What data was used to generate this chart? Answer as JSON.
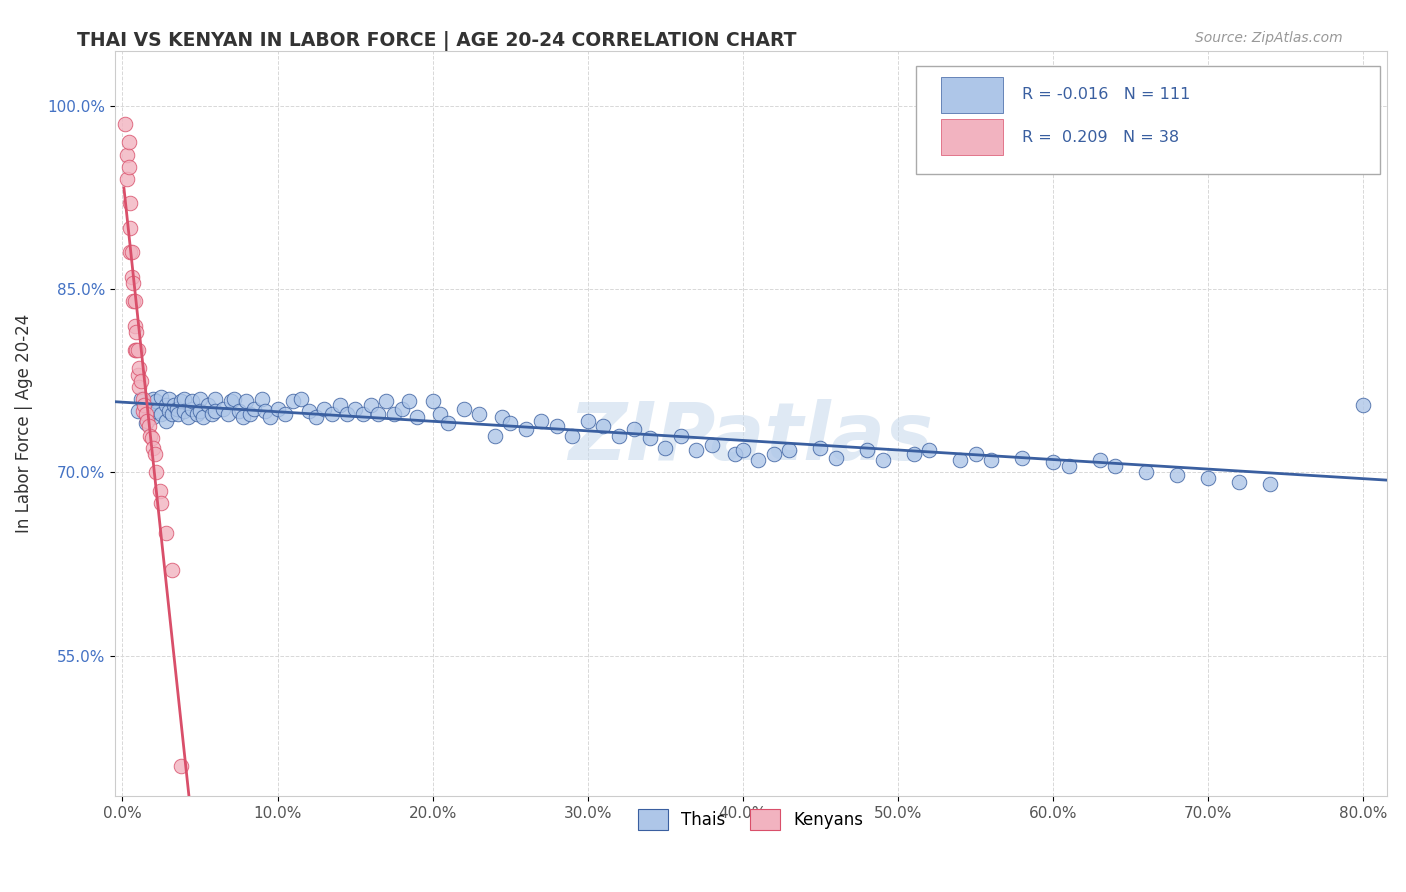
{
  "title": "THAI VS KENYAN IN LABOR FORCE | AGE 20-24 CORRELATION CHART",
  "source": "Source: ZipAtlas.com",
  "ylabel": "In Labor Force | Age 20-24",
  "x_tick_labels": [
    "0.0%",
    "10.0%",
    "20.0%",
    "30.0%",
    "40.0%",
    "50.0%",
    "60.0%",
    "70.0%",
    "80.0%"
  ],
  "x_tick_values": [
    0.0,
    0.1,
    0.2,
    0.3,
    0.4,
    0.5,
    0.6,
    0.7,
    0.8
  ],
  "y_tick_labels": [
    "55.0%",
    "70.0%",
    "85.0%",
    "100.0%"
  ],
  "y_tick_values": [
    0.55,
    0.7,
    0.85,
    1.0
  ],
  "xlim": [
    -0.005,
    0.815
  ],
  "ylim": [
    0.435,
    1.045
  ],
  "thai_color": "#aec6e8",
  "kenyan_color": "#f2b3c0",
  "thai_line_color": "#3a5fa0",
  "kenyan_line_color": "#d94f6a",
  "R_thai": -0.016,
  "N_thai": 111,
  "R_kenyan": 0.209,
  "N_kenyan": 38,
  "watermark": "ZIPatlas",
  "background_color": "#ffffff",
  "grid_color": "#d8d8d8",
  "thai_scatter_x": [
    0.01,
    0.012,
    0.015,
    0.015,
    0.018,
    0.018,
    0.02,
    0.02,
    0.022,
    0.022,
    0.025,
    0.025,
    0.028,
    0.028,
    0.03,
    0.03,
    0.032,
    0.033,
    0.035,
    0.036,
    0.038,
    0.04,
    0.04,
    0.042,
    0.045,
    0.045,
    0.048,
    0.05,
    0.05,
    0.052,
    0.055,
    0.058,
    0.06,
    0.06,
    0.065,
    0.068,
    0.07,
    0.072,
    0.075,
    0.078,
    0.08,
    0.082,
    0.085,
    0.09,
    0.092,
    0.095,
    0.1,
    0.105,
    0.11,
    0.115,
    0.12,
    0.125,
    0.13,
    0.135,
    0.14,
    0.145,
    0.15,
    0.155,
    0.16,
    0.165,
    0.17,
    0.175,
    0.18,
    0.185,
    0.19,
    0.2,
    0.205,
    0.21,
    0.22,
    0.23,
    0.24,
    0.245,
    0.25,
    0.26,
    0.27,
    0.28,
    0.29,
    0.3,
    0.31,
    0.32,
    0.33,
    0.34,
    0.35,
    0.36,
    0.37,
    0.38,
    0.395,
    0.4,
    0.41,
    0.42,
    0.43,
    0.45,
    0.46,
    0.48,
    0.49,
    0.51,
    0.52,
    0.54,
    0.55,
    0.56,
    0.58,
    0.6,
    0.61,
    0.63,
    0.64,
    0.66,
    0.68,
    0.7,
    0.72,
    0.74,
    0.8
  ],
  "thai_scatter_y": [
    0.75,
    0.76,
    0.755,
    0.74,
    0.752,
    0.748,
    0.76,
    0.745,
    0.758,
    0.75,
    0.762,
    0.748,
    0.755,
    0.742,
    0.76,
    0.75,
    0.748,
    0.755,
    0.752,
    0.748,
    0.758,
    0.76,
    0.75,
    0.745,
    0.752,
    0.758,
    0.748,
    0.76,
    0.75,
    0.745,
    0.755,
    0.748,
    0.76,
    0.75,
    0.752,
    0.748,
    0.758,
    0.76,
    0.75,
    0.745,
    0.758,
    0.748,
    0.752,
    0.76,
    0.75,
    0.745,
    0.752,
    0.748,
    0.758,
    0.76,
    0.75,
    0.745,
    0.752,
    0.748,
    0.755,
    0.748,
    0.752,
    0.748,
    0.755,
    0.748,
    0.758,
    0.748,
    0.752,
    0.758,
    0.745,
    0.758,
    0.748,
    0.74,
    0.752,
    0.748,
    0.73,
    0.745,
    0.74,
    0.735,
    0.742,
    0.738,
    0.73,
    0.742,
    0.738,
    0.73,
    0.735,
    0.728,
    0.72,
    0.73,
    0.718,
    0.722,
    0.715,
    0.718,
    0.71,
    0.715,
    0.718,
    0.72,
    0.712,
    0.718,
    0.71,
    0.715,
    0.718,
    0.71,
    0.715,
    0.71,
    0.712,
    0.708,
    0.705,
    0.71,
    0.705,
    0.7,
    0.698,
    0.695,
    0.692,
    0.69,
    0.755
  ],
  "kenyan_scatter_x": [
    0.002,
    0.003,
    0.003,
    0.004,
    0.004,
    0.005,
    0.005,
    0.005,
    0.006,
    0.006,
    0.007,
    0.007,
    0.008,
    0.008,
    0.008,
    0.009,
    0.009,
    0.01,
    0.01,
    0.011,
    0.011,
    0.012,
    0.013,
    0.013,
    0.014,
    0.015,
    0.016,
    0.017,
    0.018,
    0.019,
    0.02,
    0.021,
    0.022,
    0.024,
    0.025,
    0.028,
    0.032,
    0.038
  ],
  "kenyan_scatter_y": [
    0.985,
    0.96,
    0.94,
    0.97,
    0.95,
    0.92,
    0.9,
    0.88,
    0.88,
    0.86,
    0.855,
    0.84,
    0.84,
    0.82,
    0.8,
    0.815,
    0.8,
    0.8,
    0.78,
    0.785,
    0.77,
    0.775,
    0.76,
    0.75,
    0.755,
    0.748,
    0.742,
    0.738,
    0.73,
    0.728,
    0.72,
    0.715,
    0.7,
    0.685,
    0.675,
    0.65,
    0.62,
    0.46
  ]
}
